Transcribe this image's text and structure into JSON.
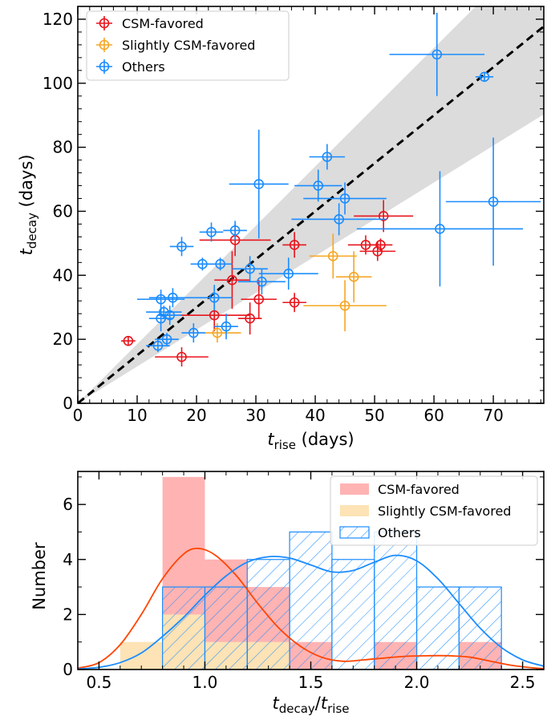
{
  "chart_data": [
    {
      "type": "scatter",
      "xlabel": "t_rise (days)",
      "xlabel_parts": {
        "var": "t",
        "sub": "rise",
        "unit": " (days)"
      },
      "ylabel": "t_decay (days)",
      "ylabel_parts": {
        "var": "t",
        "sub": "decay",
        "unit": " (days)"
      },
      "xlim": [
        0,
        78.5
      ],
      "ylim": [
        0,
        124
      ],
      "xticks": [
        0,
        10,
        20,
        30,
        40,
        50,
        60,
        70
      ],
      "yticks": [
        0,
        20,
        40,
        60,
        80,
        100,
        120
      ],
      "reference_line": {
        "slope": 1.5,
        "style": "dashed",
        "color": "#000000"
      },
      "band": {
        "lower_slope": 1.15,
        "upper_slope": 1.85,
        "color": "#dcdcdc"
      },
      "legend_position": "top-left",
      "series": [
        {
          "name": "CSM-favored",
          "color": "#e8141c",
          "points": [
            {
              "x": 8.5,
              "y": 19.5,
              "xerr": 1.2,
              "yerr": 1.2
            },
            {
              "x": 17.5,
              "y": 14.5,
              "xerr": 4.5,
              "yerr": 3
            },
            {
              "x": 23,
              "y": 27.5,
              "xerr": 6,
              "yerr": 5
            },
            {
              "x": 26,
              "y": 38.5,
              "xerr": 3,
              "yerr": 9
            },
            {
              "x": 26.5,
              "y": 51,
              "xerr": 6,
              "yerr": 5
            },
            {
              "x": 29,
              "y": 26.5,
              "xerr": 2,
              "yerr": 5
            },
            {
              "x": 30.5,
              "y": 32.5,
              "xerr": 3,
              "yerr": 6
            },
            {
              "x": 36.5,
              "y": 49.5,
              "xerr": 2,
              "yerr": 4
            },
            {
              "x": 36.5,
              "y": 31.5,
              "xerr": 2,
              "yerr": 3
            },
            {
              "x": 48.5,
              "y": 49.5,
              "xerr": 3,
              "yerr": 3
            },
            {
              "x": 50.5,
              "y": 47.5,
              "xerr": 3,
              "yerr": 3
            },
            {
              "x": 51,
              "y": 49.5,
              "xerr": 2,
              "yerr": 2
            },
            {
              "x": 51.5,
              "y": 58.5,
              "xerr": 5,
              "yerr": 5
            }
          ]
        },
        {
          "name": "Slightly CSM-favored",
          "color": "#f5a623",
          "points": [
            {
              "x": 23.5,
              "y": 22,
              "xerr": 4,
              "yerr": 3
            },
            {
              "x": 43,
              "y": 46,
              "xerr": 4,
              "yerr": 7
            },
            {
              "x": 45,
              "y": 30.5,
              "xerr": 7,
              "yerr": 8
            },
            {
              "x": 46.5,
              "y": 39.5,
              "xerr": 3,
              "yerr": 8
            }
          ]
        },
        {
          "name": "Others",
          "color": "#1a8cff",
          "points": [
            {
              "x": 13.5,
              "y": 18,
              "xerr": 2,
              "yerr": 2
            },
            {
              "x": 14,
              "y": 32.5,
              "xerr": 4,
              "yerr": 3
            },
            {
              "x": 14,
              "y": 26.5,
              "xerr": 2,
              "yerr": 4
            },
            {
              "x": 14.5,
              "y": 28.5,
              "xerr": 3,
              "yerr": 2
            },
            {
              "x": 15,
              "y": 20,
              "xerr": 2,
              "yerr": 2
            },
            {
              "x": 15.5,
              "y": 27.5,
              "xerr": 2,
              "yerr": 3
            },
            {
              "x": 16,
              "y": 33,
              "xerr": 4,
              "yerr": 3
            },
            {
              "x": 17.5,
              "y": 49,
              "xerr": 2,
              "yerr": 3
            },
            {
              "x": 19.5,
              "y": 22,
              "xerr": 2,
              "yerr": 3
            },
            {
              "x": 21,
              "y": 43.5,
              "xerr": 2,
              "yerr": 2
            },
            {
              "x": 22.5,
              "y": 53.5,
              "xerr": 2,
              "yerr": 3
            },
            {
              "x": 23,
              "y": 33,
              "xerr": 3,
              "yerr": 4
            },
            {
              "x": 24,
              "y": 43.5,
              "xerr": 2,
              "yerr": 2
            },
            {
              "x": 25,
              "y": 24,
              "xerr": 2,
              "yerr": 4
            },
            {
              "x": 26.5,
              "y": 54,
              "xerr": 2,
              "yerr": 3
            },
            {
              "x": 29,
              "y": 42,
              "xerr": 3,
              "yerr": 4
            },
            {
              "x": 30.5,
              "y": 68.5,
              "xerr": 5,
              "yerr": 17
            },
            {
              "x": 31,
              "y": 38,
              "xerr": 4,
              "yerr": 4
            },
            {
              "x": 35.5,
              "y": 40.5,
              "xerr": 5,
              "yerr": 5
            },
            {
              "x": 40.5,
              "y": 68,
              "xerr": 4,
              "yerr": 5
            },
            {
              "x": 42,
              "y": 77,
              "xerr": 3,
              "yerr": 4
            },
            {
              "x": 44,
              "y": 57.5,
              "xerr": 8,
              "yerr": 5
            },
            {
              "x": 45,
              "y": 64,
              "xerr": 7,
              "yerr": 5
            },
            {
              "x": 60.5,
              "y": 109,
              "xerr": 8,
              "yerr": 13
            },
            {
              "x": 61,
              "y": 54.5,
              "xerr": 14,
              "yerr": 18
            },
            {
              "x": 68.5,
              "y": 102,
              "xerr": 1.5,
              "yerr": 1.5
            },
            {
              "x": 70,
              "y": 63,
              "xerr": 8,
              "yerr": 20
            }
          ]
        }
      ]
    },
    {
      "type": "bar",
      "subtype": "histogram",
      "xlabel": "t_decay/t_rise",
      "xlabel_parts": {
        "var1": "t",
        "sub1": "decay",
        "slash": "/",
        "var2": "t",
        "sub2": "rise"
      },
      "ylabel": "Number",
      "xlim": [
        0.4,
        2.6
      ],
      "ylim": [
        0,
        7.2
      ],
      "xticks": [
        "0.5",
        "1.0",
        "1.5",
        "2.0",
        "2.5"
      ],
      "xtick_values": [
        0.5,
        1.0,
        1.5,
        2.0,
        2.5
      ],
      "yticks": [
        0,
        2,
        4,
        6
      ],
      "legend_position": "top-right",
      "bin_edges": [
        0.6,
        0.8,
        1.0,
        1.2,
        1.4,
        1.6,
        1.8,
        2.0,
        2.2,
        2.4
      ],
      "series": [
        {
          "name": "CSM-favored",
          "color": "#ffb3b3",
          "values": [
            0,
            7,
            4,
            3,
            1,
            0,
            1,
            0,
            1
          ]
        },
        {
          "name": "Slightly CSM-favored",
          "color": "#fde3b5",
          "values": [
            1,
            2,
            1,
            1,
            0,
            0,
            0,
            0,
            0
          ]
        },
        {
          "name": "Others",
          "color": "#1a8cff",
          "style": "hatched-outline",
          "values": [
            0,
            3,
            3,
            4,
            5,
            4,
            5,
            3,
            3
          ]
        }
      ],
      "kde_curves": [
        {
          "series": "CSM-favored",
          "color": "#ff4500",
          "x": [
            0.4,
            0.5,
            0.6,
            0.7,
            0.8,
            0.9,
            0.97,
            1.05,
            1.15,
            1.25,
            1.35,
            1.45,
            1.55,
            1.65,
            1.75,
            1.85,
            1.95,
            2.05,
            2.15,
            2.25,
            2.35,
            2.45,
            2.55,
            2.6
          ],
          "y": [
            0.05,
            0.25,
            0.9,
            2.0,
            3.3,
            4.2,
            4.4,
            4.15,
            3.4,
            2.4,
            1.5,
            0.85,
            0.45,
            0.3,
            0.35,
            0.42,
            0.48,
            0.5,
            0.5,
            0.45,
            0.3,
            0.15,
            0.06,
            0.03
          ]
        },
        {
          "series": "Others",
          "color": "#1a8cff",
          "x": [
            0.4,
            0.5,
            0.6,
            0.7,
            0.8,
            0.9,
            1.0,
            1.1,
            1.2,
            1.3,
            1.4,
            1.5,
            1.6,
            1.7,
            1.8,
            1.9,
            2.0,
            2.1,
            2.2,
            2.3,
            2.4,
            2.5,
            2.6
          ],
          "y": [
            0.02,
            0.08,
            0.25,
            0.6,
            1.2,
            1.9,
            2.7,
            3.4,
            3.9,
            4.1,
            4.05,
            3.8,
            3.55,
            3.6,
            3.9,
            4.15,
            3.95,
            3.3,
            2.4,
            1.5,
            0.8,
            0.35,
            0.12
          ]
        }
      ]
    }
  ]
}
